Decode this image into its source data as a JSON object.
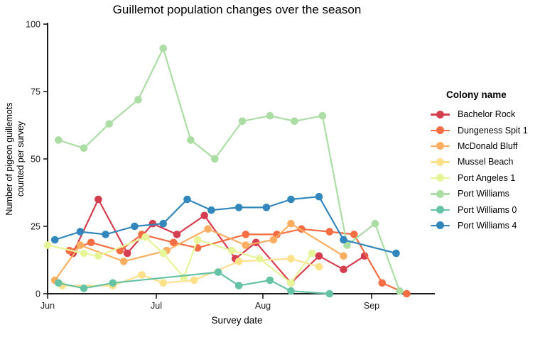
{
  "page_title": "Guillemot population changes over the season",
  "labels": {
    "title": "Guillemot population changes over the season",
    "y_axis_line1": "Number of pigeon guillemots",
    "y_axis_line2": "counted per survey",
    "x_axis": "Survey date",
    "legend_title": "Colony name"
  },
  "chart_data": {
    "type": "line",
    "title": "Guillemot population changes over the season",
    "xlabel": "Survey date",
    "ylabel": "Number of pigeon guillemots counted per survey",
    "x_unit": "days since Jun 1 (survey dates)",
    "ylim": [
      0,
      100
    ],
    "y_ticks": [
      0,
      25,
      50,
      75,
      100
    ],
    "x_ticks": [
      {
        "label": "Jun",
        "day": 0
      },
      {
        "label": "Jul",
        "day": 30
      },
      {
        "label": "Aug",
        "day": 61
      },
      {
        "label": "Sep",
        "day": 92
      }
    ],
    "grid": false,
    "legend_position": "right",
    "legend_title": "Colony name",
    "axis_color": "#1a1a1a",
    "marker_radius": 5.3,
    "line_width": 2.2,
    "series": [
      {
        "name": "Bachelor Rock",
        "color": "#d53e4f",
        "x": [
          7,
          14,
          22,
          29,
          36,
          44,
          53,
          59,
          69,
          77,
          84,
          90
        ],
        "y": [
          15,
          35,
          15,
          26,
          22,
          29,
          13,
          19,
          4,
          14,
          9,
          14
        ]
      },
      {
        "name": "Dungeness Spit 1",
        "color": "#f46d43",
        "x": [
          6,
          12,
          20,
          26,
          35,
          42,
          56,
          65,
          72,
          80,
          87,
          95,
          102
        ],
        "y": [
          16,
          19,
          16,
          22,
          19,
          17,
          22,
          22,
          24,
          23,
          22,
          4,
          0
        ]
      },
      {
        "name": "McDonald Bluff",
        "color": "#fdae61",
        "x": [
          2,
          9,
          21,
          33,
          45,
          56,
          64,
          69,
          84
        ],
        "y": [
          5,
          18,
          12,
          16,
          24,
          18,
          20,
          26,
          14
        ]
      },
      {
        "name": "Mussel Beach",
        "color": "#fee08b",
        "x": [
          4,
          18,
          26,
          32,
          41,
          54,
          69,
          77
        ],
        "y": [
          3,
          3,
          7,
          4,
          5,
          12,
          13,
          10
        ]
      },
      {
        "name": "Port Angeles 1",
        "color": "#e6f598",
        "x": [
          0,
          10,
          14,
          27,
          32,
          38,
          42,
          52,
          60,
          69,
          75
        ],
        "y": [
          18,
          15,
          14,
          21,
          15,
          6,
          20,
          16,
          13,
          4,
          15
        ]
      },
      {
        "name": "Port Williams",
        "color": "#abdda4",
        "x": [
          3,
          10,
          17,
          25,
          32,
          40,
          47,
          55,
          63,
          70,
          78,
          85,
          93,
          100
        ],
        "y": [
          57,
          54,
          63,
          72,
          91,
          57,
          50,
          64,
          66,
          64,
          66,
          18,
          26,
          1
        ]
      },
      {
        "name": "Port Williams 0",
        "color": "#66c2a5",
        "x": [
          3,
          10,
          18,
          48,
          54,
          63,
          69,
          80
        ],
        "y": [
          4,
          2,
          4,
          8,
          3,
          5,
          1,
          0
        ]
      },
      {
        "name": "Port Williams 4",
        "color": "#3288bd",
        "x": [
          2,
          9,
          16,
          24,
          32,
          39,
          46,
          54,
          62,
          69,
          77,
          84,
          99
        ],
        "y": [
          20,
          23,
          22,
          25,
          26,
          35,
          31,
          32,
          32,
          35,
          36,
          20,
          15
        ]
      }
    ]
  }
}
